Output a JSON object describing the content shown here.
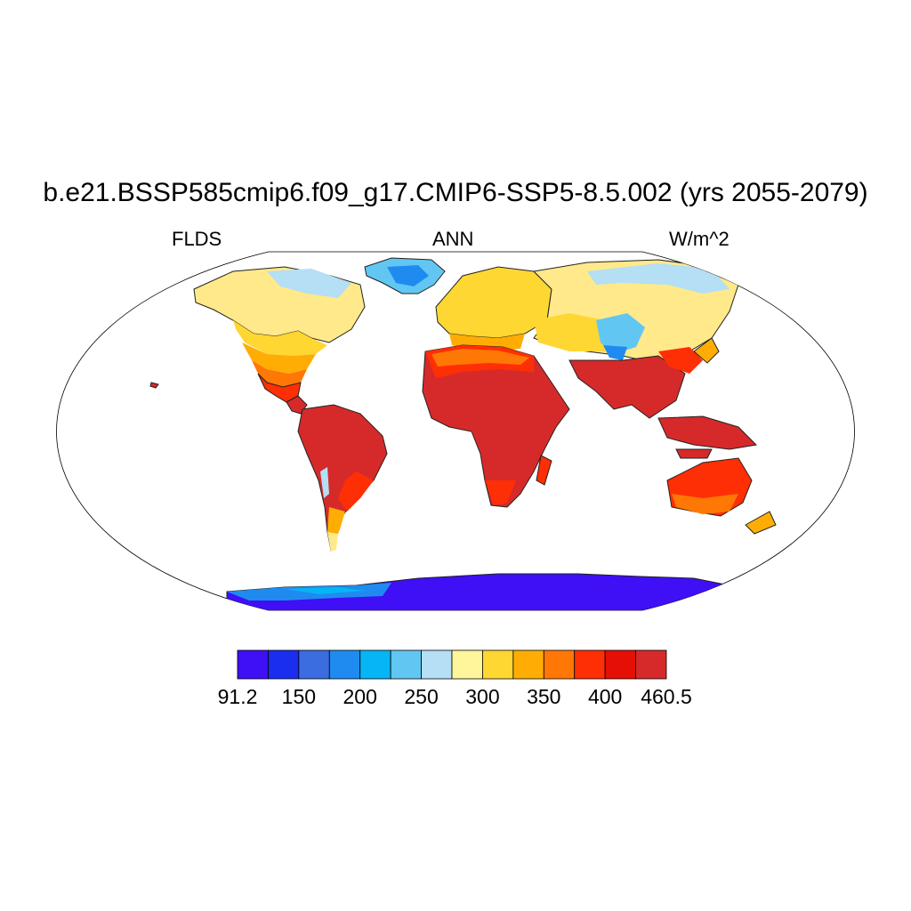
{
  "title": "b.e21.BSSP585cmip6.f09_g17.CMIP6-SSP5-8.5.002 (yrs 2055-2079)",
  "subtitles": {
    "left": "FLDS",
    "center": "ANN",
    "right": "W/m^2"
  },
  "colorbar": {
    "colors": [
      "#3f0ff5",
      "#1a2ef0",
      "#3b6de0",
      "#1f8bf0",
      "#05b5f5",
      "#62c6f2",
      "#b4dff4",
      "#fff59a",
      "#ffd732",
      "#ffad05",
      "#ff7705",
      "#ff2f05",
      "#e50f05",
      "#d62a2a"
    ],
    "labels": [
      "91.2",
      "150",
      "200",
      "250",
      "300",
      "350",
      "400",
      "460.5"
    ]
  },
  "regions": [
    {
      "name": "north-america",
      "level": "yellow-to-red"
    },
    {
      "name": "greenland",
      "level": "blue"
    },
    {
      "name": "south-america",
      "level": "dark-red"
    },
    {
      "name": "europe",
      "level": "yellow-orange"
    },
    {
      "name": "africa",
      "level": "dark-red"
    },
    {
      "name": "asia",
      "level": "yellow-to-light-blue"
    },
    {
      "name": "tibetan-plateau",
      "level": "light-blue"
    },
    {
      "name": "maritime-continent",
      "level": "dark-red"
    },
    {
      "name": "australia",
      "level": "orange-red"
    },
    {
      "name": "new-zealand",
      "level": "orange"
    },
    {
      "name": "antarctica",
      "level": "blue-violet"
    }
  ]
}
